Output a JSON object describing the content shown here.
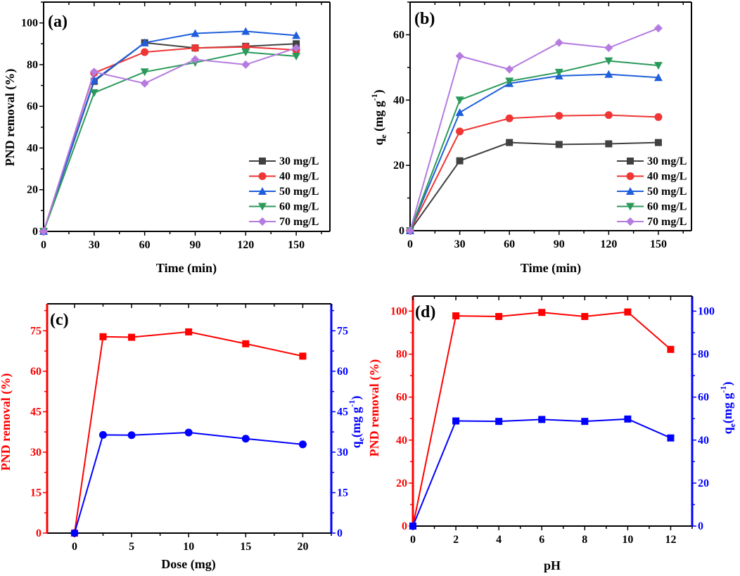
{
  "chart_data": [
    {
      "id": "a",
      "type": "line",
      "panel_label": "(a)",
      "xlabel": "Time (min)",
      "ylabel": "PND removal (%)",
      "xlim": [
        0,
        170
      ],
      "ylim": [
        0,
        110
      ],
      "xticks": [
        0,
        30,
        60,
        90,
        120,
        150
      ],
      "yticks": [
        0,
        20,
        40,
        60,
        80,
        100
      ],
      "legend_position": "bottom-right",
      "x": [
        0,
        30,
        60,
        90,
        120,
        150
      ],
      "series": [
        {
          "name": "30 mg/L",
          "color": "#404040",
          "marker": "square",
          "values": [
            0,
            72,
            90.5,
            88,
            88.8,
            90
          ]
        },
        {
          "name": "40 mg/L",
          "color": "#f03535",
          "marker": "circle",
          "values": [
            0,
            76,
            86,
            88,
            88.5,
            87
          ]
        },
        {
          "name": "50 mg/L",
          "color": "#1f5fdc",
          "marker": "triangle-up",
          "values": [
            0,
            72.5,
            90.5,
            95,
            96,
            94
          ]
        },
        {
          "name": "60 mg/L",
          "color": "#2a9a5a",
          "marker": "triangle-down",
          "values": [
            0,
            66.5,
            76.5,
            81,
            86,
            84
          ]
        },
        {
          "name": "70 mg/L",
          "color": "#b57be0",
          "marker": "diamond",
          "values": [
            0,
            76.5,
            71,
            82.5,
            80,
            88
          ]
        }
      ]
    },
    {
      "id": "b",
      "type": "line",
      "panel_label": "(b)",
      "xlabel": "Time (min)",
      "ylabel": {
        "main": "q",
        "sub": "e",
        "mid": " (mg g",
        "sup": "-1",
        "end": ")"
      },
      "xlim": [
        0,
        170
      ],
      "ylim": [
        0,
        70
      ],
      "xticks": [
        0,
        30,
        60,
        90,
        120,
        150
      ],
      "yticks": [
        0,
        20,
        40,
        60
      ],
      "legend_position": "bottom-right",
      "x": [
        0,
        30,
        60,
        90,
        120,
        150
      ],
      "series": [
        {
          "name": "30 mg/L",
          "color": "#404040",
          "marker": "square",
          "values": [
            0,
            21.4,
            27,
            26.4,
            26.6,
            27
          ]
        },
        {
          "name": "40 mg/L",
          "color": "#f03535",
          "marker": "circle",
          "values": [
            0,
            30.4,
            34.4,
            35.2,
            35.4,
            34.8
          ]
        },
        {
          "name": "50 mg/L",
          "color": "#1f5fdc",
          "marker": "triangle-up",
          "values": [
            0,
            36.2,
            45.1,
            47.4,
            47.9,
            46.9
          ]
        },
        {
          "name": "60 mg/L",
          "color": "#2a9a5a",
          "marker": "triangle-down",
          "values": [
            0,
            40,
            45.8,
            48.5,
            52,
            50.6
          ]
        },
        {
          "name": "70 mg/L",
          "color": "#b57be0",
          "marker": "diamond",
          "values": [
            0,
            53.5,
            49.4,
            57.6,
            56,
            62
          ]
        }
      ]
    },
    {
      "id": "c",
      "type": "line",
      "panel_label": "(c)",
      "xlabel": "Dose (mg)",
      "ylabel": "PND removal (%)",
      "ylabel_right": {
        "main": "q",
        "sub": "e",
        "mid": "(mg g",
        "sup": "-1",
        "end": ")"
      },
      "xlim": [
        -2.4,
        22.5
      ],
      "ylim": [
        0,
        85
      ],
      "ylim_right": [
        0,
        85
      ],
      "xticks": [
        0,
        5,
        10,
        15,
        20
      ],
      "yticks": [
        0,
        15,
        30,
        45,
        60,
        75
      ],
      "x": [
        0,
        2.5,
        5,
        10,
        15,
        20
      ],
      "series": [
        {
          "name": "PND removal (%)",
          "axis": "left",
          "color": "#ff0000",
          "marker": "square",
          "values": [
            0,
            72.8,
            72.6,
            74.6,
            70.2,
            65.6
          ]
        },
        {
          "name": "qe (mg g-1)",
          "axis": "right",
          "color": "#0000ff",
          "marker": "circle",
          "values": [
            0,
            36.4,
            36.3,
            37.3,
            35,
            32.9
          ]
        }
      ]
    },
    {
      "id": "d",
      "type": "line",
      "panel_label": "(d)",
      "xlabel": "pH",
      "ylabel": "PND removal (%)",
      "ylabel_right": {
        "main": "q",
        "sub": "e",
        "mid": "(mg g",
        "sup": "-1",
        "end": ")"
      },
      "xlim": [
        0,
        13
      ],
      "ylim": [
        0,
        107
      ],
      "ylim_right": [
        0,
        107
      ],
      "xticks": [
        0,
        2,
        4,
        6,
        8,
        10,
        12
      ],
      "yticks": [
        0,
        20,
        40,
        60,
        80,
        100
      ],
      "x": [
        0,
        2,
        4,
        6,
        8,
        10,
        12
      ],
      "series": [
        {
          "name": "PND removal (%)",
          "axis": "left",
          "color": "#ff0000",
          "marker": "square",
          "values": [
            0,
            97.8,
            97.5,
            99.4,
            97.5,
            99.6,
            82.2
          ]
        },
        {
          "name": "qe (mg g-1)",
          "axis": "right",
          "color": "#0000ff",
          "marker": "square",
          "values": [
            0,
            48.9,
            48.7,
            49.6,
            48.7,
            49.8,
            41
          ]
        }
      ]
    }
  ]
}
